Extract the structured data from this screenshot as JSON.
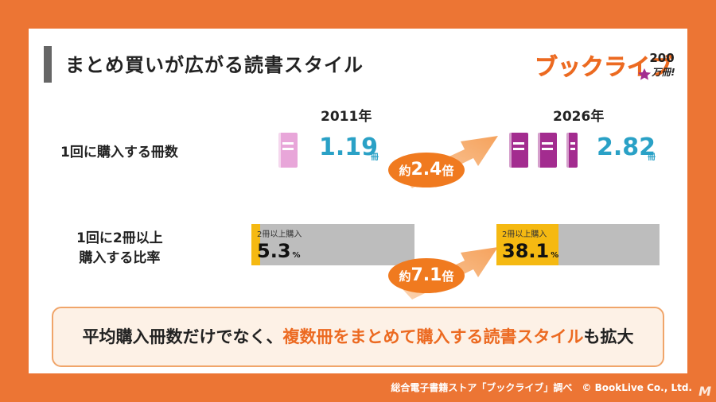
{
  "title": "まとめ買いが広がる読書スタイル",
  "logo": {
    "text": "ブックライブ",
    "badge_number": "200",
    "badge_text": "万冊!"
  },
  "years": [
    "2011年",
    "2026年"
  ],
  "rows": [
    {
      "label": "1回に購入する冊数"
    },
    {
      "label_line1": "1回に2冊以上",
      "label_line2": "購入する比率"
    }
  ],
  "books_per_purchase": {
    "y2011": {
      "value": "1.19",
      "unit": "冊",
      "color": "#e8a6d9"
    },
    "y2026": {
      "value": "2.82",
      "unit": "冊",
      "color": "#a32c8f"
    },
    "multiplier": {
      "prefix": "約",
      "value": "2.4",
      "suffix": "倍"
    }
  },
  "multi_book_ratio": {
    "caption": "2冊以上購入",
    "y2011": {
      "value": "5.3",
      "unit": "%"
    },
    "y2026": {
      "value": "38.1",
      "unit": "%"
    },
    "multiplier": {
      "prefix": "約",
      "value": "7.1",
      "suffix": "倍"
    },
    "fill_color": "#f5b912",
    "track_color": "#bdbdbd"
  },
  "chart_data": {
    "type": "bar",
    "categories": [
      "2011年",
      "2026年"
    ],
    "series": [
      {
        "values": [
          1.19,
          2.82
        ]
      },
      {
        "values": [
          5.3,
          38.1
        ]
      }
    ]
  },
  "summary": {
    "part1": "平均購入冊数だけでなく、",
    "highlight": "複数冊をまとめて購入する読書スタイル",
    "part2": "も拡大"
  },
  "credit": "総合電子書籍ストア「ブックライブ」調べ　© BookLive Co., Ltd.",
  "corner_mark": "M"
}
